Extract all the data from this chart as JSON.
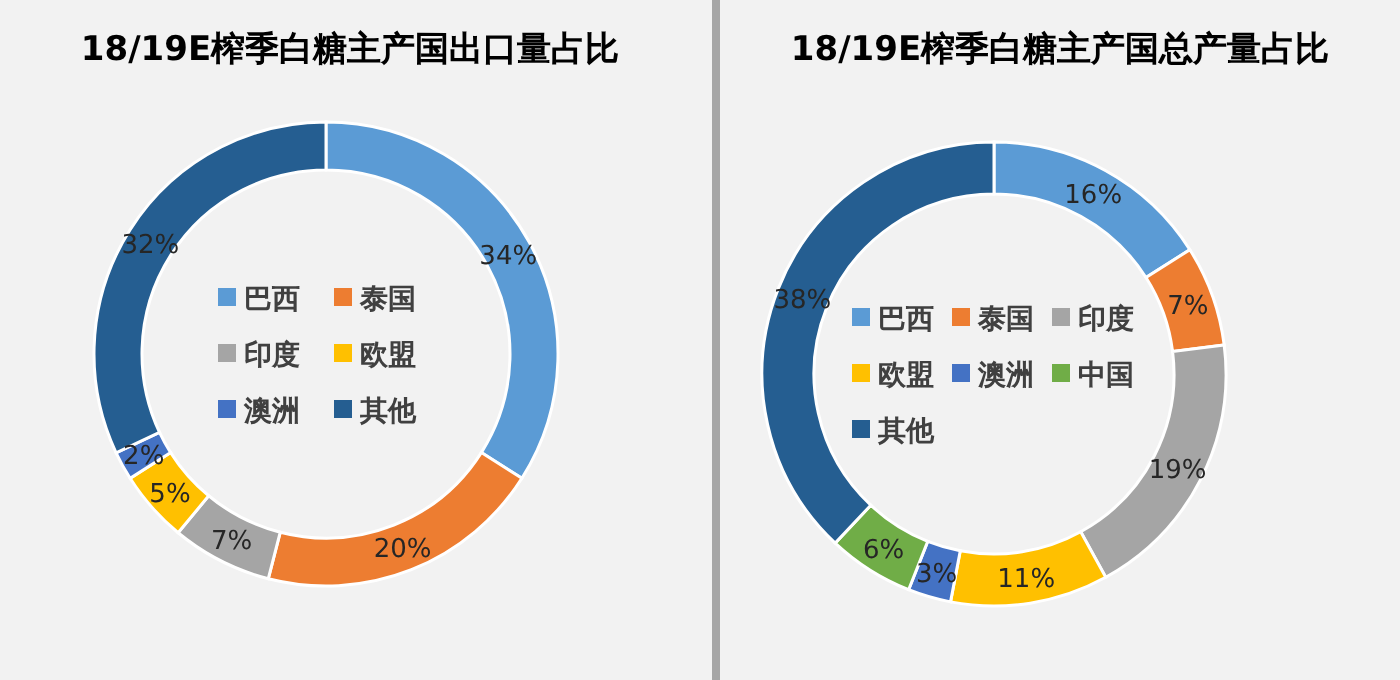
{
  "chart_data": [
    {
      "type": "donut",
      "title": "18/19E榨季白糖主产国出口量占比",
      "categories": [
        "巴西",
        "泰国",
        "印度",
        "欧盟",
        "澳洲",
        "其他"
      ],
      "values": [
        34,
        20,
        7,
        5,
        2,
        32
      ],
      "value_labels": [
        "34%",
        "20%",
        "7%",
        "5%",
        "2%",
        "32%"
      ],
      "colors": [
        "#5b9bd5",
        "#ed7d31",
        "#a5a5a5",
        "#ffc000",
        "#4472c4",
        "#255e91"
      ],
      "legend": "center"
    },
    {
      "type": "donut",
      "title": "18/19E榨季白糖主产国总产量占比",
      "categories": [
        "巴西",
        "泰国",
        "印度",
        "欧盟",
        "澳洲",
        "中国",
        "其他"
      ],
      "values": [
        16,
        7,
        19,
        11,
        3,
        6,
        38
      ],
      "value_labels": [
        "16%",
        "7%",
        "19%",
        "11%",
        "3%",
        "6%",
        "38%"
      ],
      "colors": [
        "#5b9bd5",
        "#ed7d31",
        "#a5a5a5",
        "#ffc000",
        "#4472c4",
        "#70ad47",
        "#255e91"
      ],
      "legend": "center"
    }
  ]
}
